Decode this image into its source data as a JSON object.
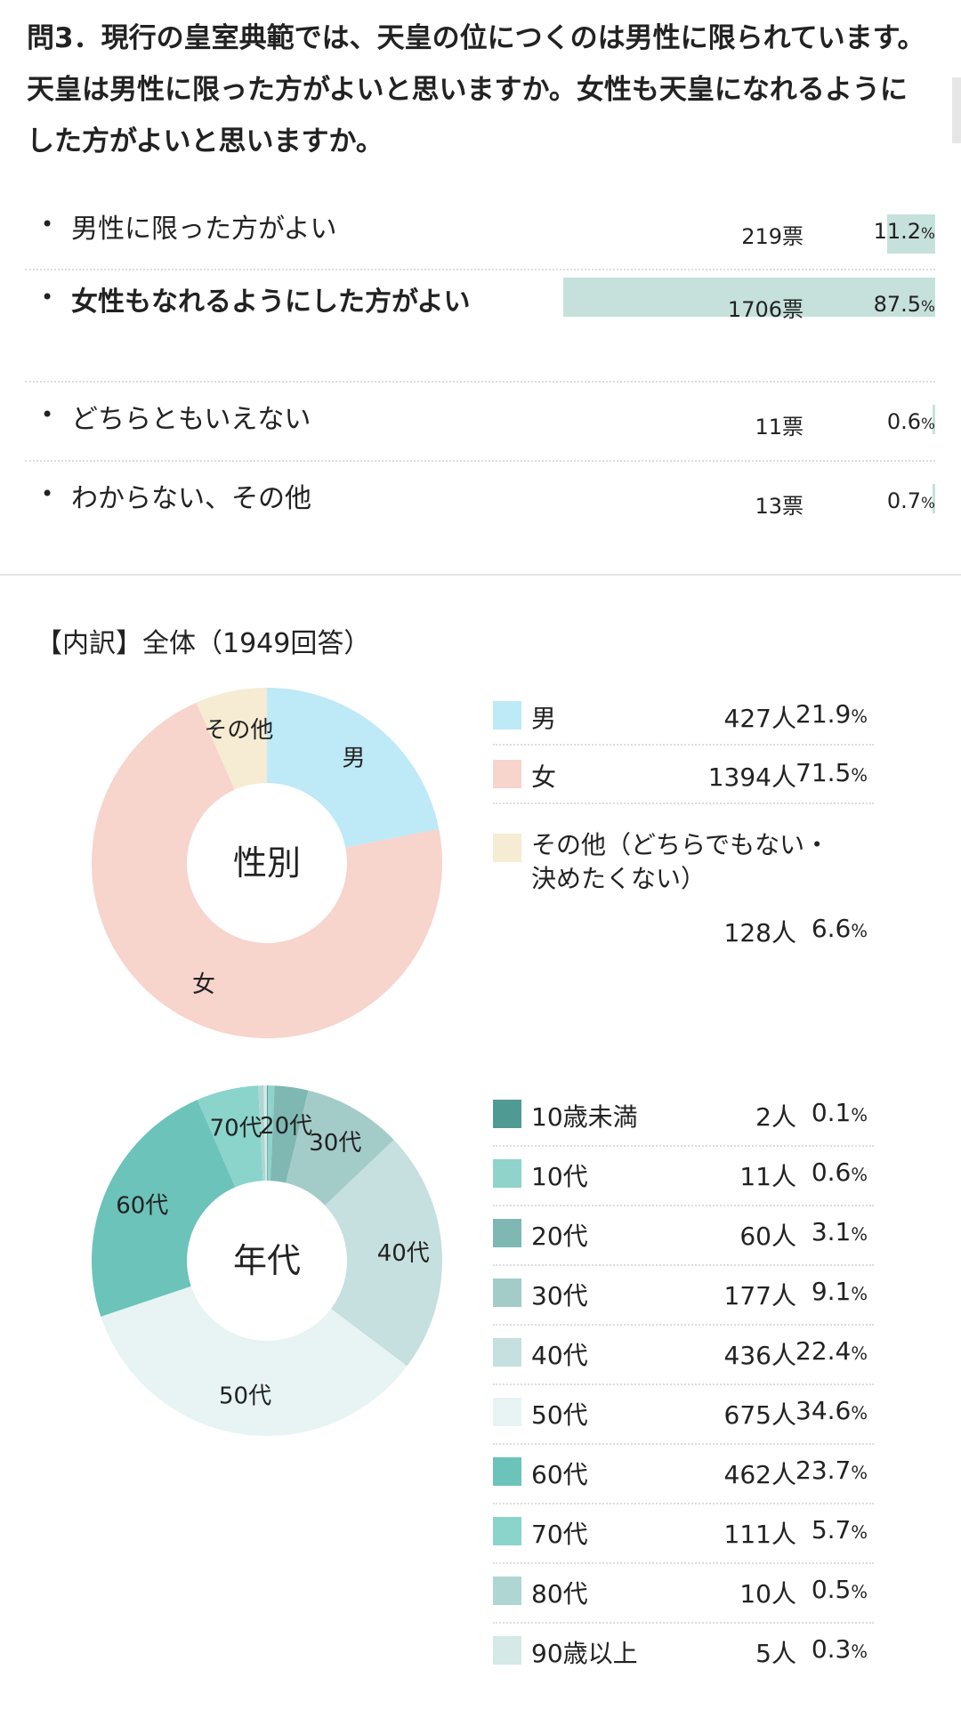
{
  "question": {
    "title": "問3．現行の皇室典範では、天皇の位につくのは男性に限られています。天皇は男性に限った方がよいと思いますか。女性も天皇になれるようにした方がよいと思いますか。"
  },
  "options": [
    {
      "bullet": "•",
      "label": "男性に限った方がよい",
      "count": "219票",
      "pct": "11.2",
      "pct_unit": "%",
      "fraction": 0.112,
      "bold": false
    },
    {
      "bullet": "•",
      "label": "女性もなれるようにした方がよい",
      "count": "1706票",
      "pct": "87.5",
      "pct_unit": "%",
      "fraction": 0.875,
      "bold": true
    },
    {
      "bullet": "•",
      "label": "どちらともいえない",
      "count": "11票",
      "pct": "0.6",
      "pct_unit": "%",
      "fraction": 0.006,
      "bold": false
    },
    {
      "bullet": "•",
      "label": "わからない、その他",
      "count": "13票",
      "pct": "0.7",
      "pct_unit": "%",
      "fraction": 0.007,
      "bold": false
    }
  ],
  "breakdown_title": "【内訳】全体（1949回答）",
  "chart_data": [
    {
      "type": "pie",
      "title": "性別",
      "slices": [
        {
          "name": "男",
          "pie_label": "男",
          "count": "427人",
          "pct": "21.9",
          "value": 21.9,
          "color": "#bee9f6"
        },
        {
          "name": "女",
          "pie_label": "女",
          "count": "1394人",
          "pct": "71.5",
          "value": 71.5,
          "color": "#f7d4cc"
        },
        {
          "name": "その他（どちらでもない・決めたくない）",
          "pie_label": "その他",
          "count": "128人",
          "pct": "6.6",
          "value": 6.6,
          "color": "#f6ebd3"
        }
      ]
    },
    {
      "type": "pie",
      "title": "年代",
      "slices": [
        {
          "name": "10歳未満",
          "pie_label": "",
          "count": "2人",
          "pct": "0.1",
          "value": 0.1,
          "color": "#4f9a93"
        },
        {
          "name": "10代",
          "pie_label": "",
          "count": "11人",
          "pct": "0.6",
          "value": 0.6,
          "color": "#8fd3cb"
        },
        {
          "name": "20代",
          "pie_label": "20代",
          "count": "60人",
          "pct": "3.1",
          "value": 3.1,
          "color": "#7fb8b2"
        },
        {
          "name": "30代",
          "pie_label": "30代",
          "count": "177人",
          "pct": "9.1",
          "value": 9.1,
          "color": "#a3ccc9"
        },
        {
          "name": "40代",
          "pie_label": "40代",
          "count": "436人",
          "pct": "22.4",
          "value": 22.4,
          "color": "#c5e0de"
        },
        {
          "name": "50代",
          "pie_label": "50代",
          "count": "675人",
          "pct": "34.6",
          "value": 34.6,
          "color": "#e8f3f3"
        },
        {
          "name": "60代",
          "pie_label": "60代",
          "count": "462人",
          "pct": "23.7",
          "value": 23.7,
          "color": "#6bc3b9"
        },
        {
          "name": "70代",
          "pie_label": "70代",
          "count": "111人",
          "pct": "5.7",
          "value": 5.7,
          "color": "#8ad4cb"
        },
        {
          "name": "80代",
          "pie_label": "",
          "count": "10人",
          "pct": "0.5",
          "value": 0.5,
          "color": "#afd6d2"
        },
        {
          "name": "90歳以上",
          "pie_label": "",
          "count": "5人",
          "pct": "0.3",
          "value": 0.3,
          "color": "#d5e9e7"
        }
      ]
    }
  ],
  "pct_unit": "%"
}
